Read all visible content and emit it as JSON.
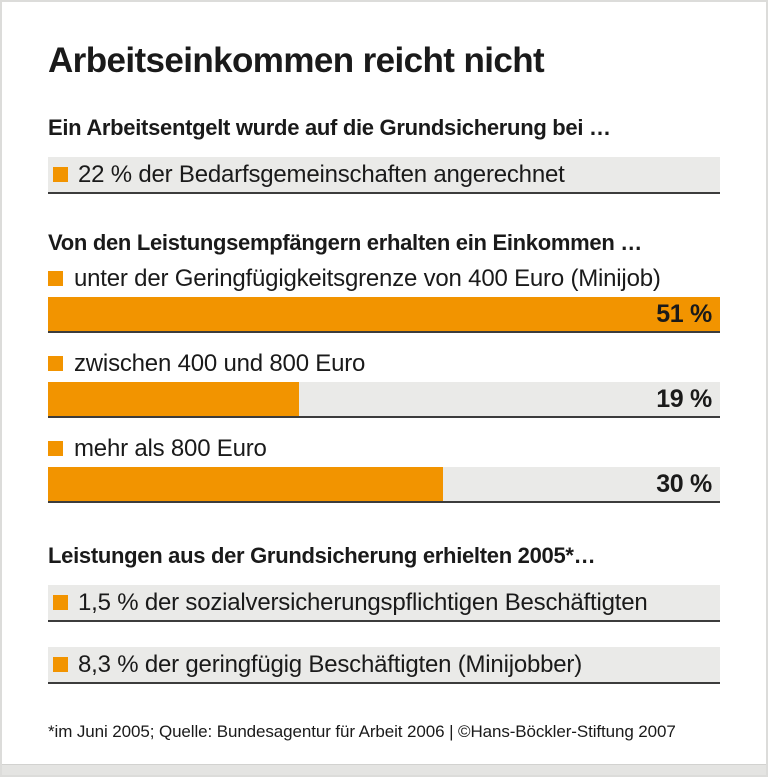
{
  "title": "Arbeitseinkommen reicht nicht",
  "colors": {
    "accent_orange": "#f29400",
    "track_gray": "#eaeae8",
    "underline_dark": "#3c3c3c"
  },
  "section1": {
    "heading": "Ein Arbeitsentgelt wurde auf die Grundsicherung bei …",
    "item": "22 % der Bedarfsgemeinschaften angerechnet"
  },
  "section2": {
    "heading": "Von den Leistungsempfängern erhalten ein Einkommen …",
    "bars": [
      {
        "label": "unter der Geringfügigkeitsgrenze von 400 Euro (Minijob)",
        "value_label": "51 %",
        "fill": "100%"
      },
      {
        "label": "zwischen 400 und 800 Euro",
        "value_label": "19 %",
        "fill": "37.3%"
      },
      {
        "label": "mehr als 800 Euro",
        "value_label": "30 %",
        "fill": "58.8%"
      }
    ]
  },
  "section3": {
    "heading": "Leistungen aus der Grundsicherung erhielten 2005*…",
    "items": [
      "1,5 % der sozialversicherungspflichtigen Beschäftigten",
      "8,3 % der geringfügig Beschäftigten (Minijobber)"
    ]
  },
  "footnote": "*im Juni 2005; Quelle: Bundesagentur für Arbeit 2006 | ©Hans-Böckler-Stiftung 2007",
  "chart_data": {
    "type": "bar",
    "title": "Arbeitseinkommen reicht nicht",
    "orientation": "horizontal",
    "bar_scale_max": 51,
    "unit": "%",
    "groups": [
      {
        "heading": "Ein Arbeitsentgelt wurde auf die Grundsicherung bei …",
        "items": [
          {
            "label": "der Bedarfsgemeinschaften angerechnet",
            "value": 22
          }
        ]
      },
      {
        "heading": "Von den Leistungsempfängern erhalten ein Einkommen …",
        "items": [
          {
            "label": "unter der Geringfügigkeitsgrenze von 400 Euro (Minijob)",
            "value": 51
          },
          {
            "label": "zwischen 400 und 800 Euro",
            "value": 19
          },
          {
            "label": "mehr als 800 Euro",
            "value": 30
          }
        ]
      },
      {
        "heading": "Leistungen aus der Grundsicherung erhielten 2005*…",
        "items": [
          {
            "label": "der sozialversicherungspflichtigen Beschäftigten",
            "value": 1.5
          },
          {
            "label": "der geringfügig Beschäftigten (Minijobber)",
            "value": 8.3
          }
        ]
      }
    ],
    "footnote": "*im Juni 2005; Quelle: Bundesagentur für Arbeit 2006 | ©Hans-Böckler-Stiftung 2007"
  }
}
